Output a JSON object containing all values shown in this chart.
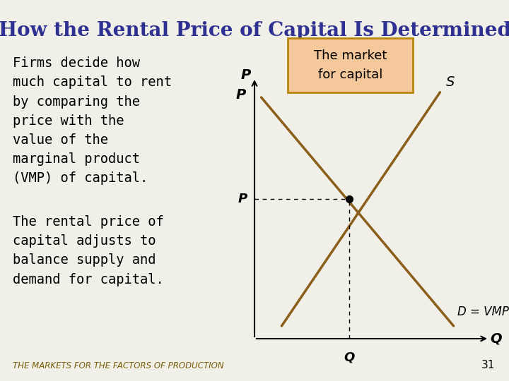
{
  "title": "How the Rental Price of Capital Is Determined",
  "title_color": "#2E3192",
  "title_fontsize": 20,
  "bg_color": "#F0EFE8",
  "left_text_1": "Firms decide how\nmuch capital to rent\nby comparing the\nprice with the\nvalue of the\nmarginal product\n(VMP) of capital.",
  "left_text_2": "The rental price of\ncapital adjusts to\nbalance supply and\ndemand for capital.",
  "footer_text": "THE MARKETS FOR THE FACTORS OF PRODUCTION",
  "footer_number": "31",
  "box_text": "The market\nfor capital",
  "box_bg": "#F4C89A",
  "box_border": "#B8860B",
  "curve_color": "#8B5E1A",
  "line_color": "#000000",
  "dashed_color": "#000000",
  "supply_label": "S",
  "demand_label": "D = VMP",
  "p_axis_label": "P",
  "q_axis_label": "Q",
  "eq_p_label": "P",
  "eq_q_label": "Q",
  "text_font": "monospace",
  "italic_text": "(VMP)"
}
